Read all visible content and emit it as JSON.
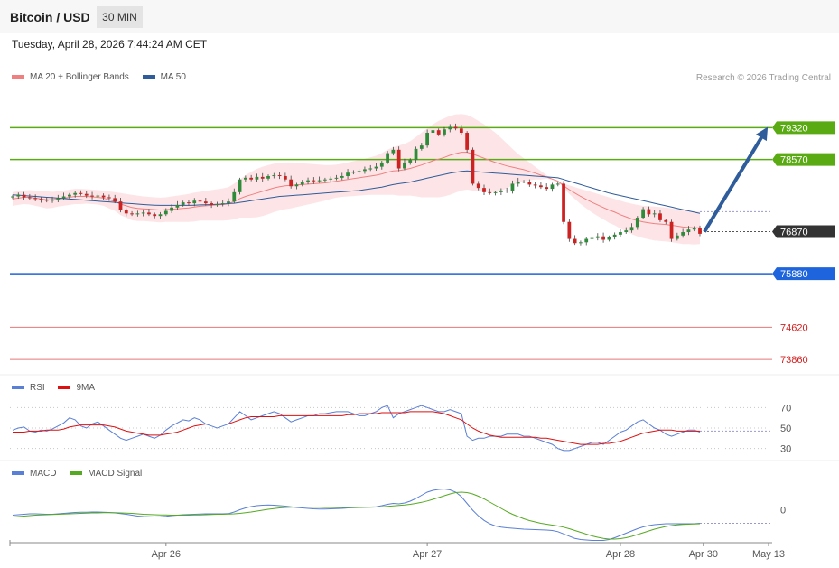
{
  "header": {
    "title": "Bitcoin / USD",
    "timeframe": "30 MIN",
    "date": "Tuesday, April 28, 2026 7:44:24 AM CET",
    "credit": "Research © 2026 Trading Central"
  },
  "colors": {
    "ma20": "#f08080",
    "ma50": "#2f5c9a",
    "bollinger": "#fde2e4",
    "candle_up": "#2e8b3a",
    "candle_down": "#cc2222",
    "resistance": "#5aaa14",
    "pivot": "#333333",
    "support1": "#1e64dc",
    "support2": "#e87878",
    "rsi": "#5a7fd6",
    "rsi_ma": "#dd1111",
    "macd": "#5a7fd6",
    "macd_signal": "#55aa22",
    "arrow": "#2f5c9a"
  },
  "chart_data": [
    {
      "type": "candlestick",
      "panel": "price",
      "legend": [
        {
          "name": "MA 20 + Bollinger Bands",
          "color": "#f08080"
        },
        {
          "name": "MA 50",
          "color": "#2f5c9a"
        }
      ],
      "x_ticks": [
        "Apr 26",
        "Apr 27",
        "Apr 28",
        "Apr 30",
        "May 13"
      ],
      "ylim": [
        73500,
        80200
      ],
      "levels": [
        {
          "value": 79320,
          "label": "79320",
          "kind": "resistance"
        },
        {
          "value": 78570,
          "label": "78570",
          "kind": "resistance"
        },
        {
          "value": 76870,
          "label": "76870",
          "kind": "pivot"
        },
        {
          "value": 75880,
          "label": "75880",
          "kind": "support1"
        },
        {
          "value": 74620,
          "label": "74620",
          "kind": "support2"
        },
        {
          "value": 73860,
          "label": "73860",
          "kind": "support2"
        }
      ],
      "close": [
        77700,
        77740,
        77680,
        77660,
        77640,
        77620,
        77600,
        77630,
        77660,
        77700,
        77740,
        77780,
        77760,
        77720,
        77700,
        77720,
        77680,
        77660,
        77580,
        77380,
        77300,
        77280,
        77300,
        77320,
        77280,
        77240,
        77280,
        77360,
        77440,
        77500,
        77560,
        77540,
        77600,
        77580,
        77540,
        77500,
        77520,
        77540,
        77580,
        77800,
        78100,
        78140,
        78100,
        78160,
        78120,
        78180,
        78200,
        78180,
        78100,
        77940,
        77980,
        78040,
        78080,
        78060,
        78080,
        78100,
        78120,
        78140,
        78180,
        78260,
        78280,
        78300,
        78340,
        78360,
        78400,
        78500,
        78720,
        78800,
        78360,
        78500,
        78560,
        78820,
        78900,
        79200,
        79260,
        79160,
        79280,
        79340,
        79300,
        79200,
        78800,
        78000,
        77900,
        77800,
        77780,
        77800,
        77840,
        77820,
        78000,
        78050,
        78050,
        77980,
        77960,
        77920,
        77880,
        77980,
        78000,
        77100,
        76700,
        76600,
        76620,
        76700,
        76720,
        76760,
        76680,
        76740,
        76800,
        76860,
        76900,
        76980,
        77200,
        77400,
        77280,
        77300,
        77140,
        77100,
        76700,
        76780,
        76860,
        76920,
        76960,
        76820
      ],
      "ma20": [
        77640,
        77660,
        77680,
        77680,
        77660,
        77640,
        77620,
        77620,
        77640,
        77660,
        77680,
        77700,
        77700,
        77700,
        77690,
        77680,
        77660,
        77620,
        77580,
        77520,
        77480,
        77440,
        77420,
        77410,
        77400,
        77390,
        77380,
        77390,
        77400,
        77410,
        77420,
        77430,
        77450,
        77470,
        77480,
        77490,
        77500,
        77510,
        77530,
        77580,
        77650,
        77700,
        77740,
        77780,
        77820,
        77860,
        77900,
        77930,
        77950,
        77960,
        77970,
        77980,
        77990,
        78000,
        78010,
        78020,
        78040,
        78060,
        78080,
        78100,
        78120,
        78140,
        78160,
        78180,
        78200,
        78230,
        78270,
        78300,
        78310,
        78330,
        78360,
        78400,
        78440,
        78490,
        78540,
        78580,
        78620,
        78670,
        78710,
        78740,
        78740,
        78700,
        78650,
        78600,
        78550,
        78500,
        78460,
        78420,
        78390,
        78360,
        78330,
        78290,
        78250,
        78200,
        78160,
        78110,
        78060,
        77950,
        77860,
        77780,
        77700,
        77630,
        77560,
        77500,
        77440,
        77380,
        77330,
        77270,
        77220,
        77170,
        77130,
        77100,
        77080,
        77060,
        77050,
        77040,
        77020,
        77000,
        76980,
        76970,
        76960,
        76960
      ],
      "bb_upper": [
        77800,
        77820,
        77840,
        77850,
        77840,
        77830,
        77820,
        77810,
        77820,
        77840,
        77860,
        77880,
        77880,
        77870,
        77860,
        77850,
        77840,
        77820,
        77800,
        77780,
        77760,
        77740,
        77720,
        77700,
        77690,
        77680,
        77670,
        77680,
        77700,
        77720,
        77740,
        77760,
        77790,
        77810,
        77830,
        77850,
        77870,
        77890,
        77920,
        78000,
        78100,
        78200,
        78280,
        78350,
        78400,
        78440,
        78470,
        78490,
        78500,
        78500,
        78490,
        78480,
        78470,
        78460,
        78450,
        78440,
        78440,
        78450,
        78470,
        78500,
        78530,
        78560,
        78590,
        78620,
        78660,
        78720,
        78800,
        78860,
        78900,
        78940,
        79000,
        79100,
        79200,
        79300,
        79400,
        79480,
        79540,
        79600,
        79630,
        79640,
        79620,
        79560,
        79480,
        79400,
        79300,
        79200,
        79080,
        78950,
        78820,
        78700,
        78600,
        78500,
        78400,
        78300,
        78200,
        78120,
        78060,
        78000,
        77960,
        77920,
        77880,
        77840,
        77800,
        77760,
        77720,
        77680,
        77640,
        77600,
        77560,
        77530,
        77500,
        77480,
        77470,
        77460,
        77450,
        77440,
        77420,
        77400,
        77380,
        77360,
        77350,
        77340
      ],
      "bb_lower": [
        77480,
        77500,
        77520,
        77510,
        77480,
        77450,
        77420,
        77430,
        77460,
        77480,
        77500,
        77520,
        77520,
        77530,
        77520,
        77510,
        77480,
        77420,
        77360,
        77260,
        77200,
        77140,
        77120,
        77120,
        77110,
        77100,
        77090,
        77100,
        77100,
        77100,
        77100,
        77100,
        77110,
        77130,
        77130,
        77130,
        77130,
        77130,
        77140,
        77160,
        77200,
        77200,
        77200,
        77210,
        77240,
        77280,
        77330,
        77370,
        77400,
        77420,
        77450,
        77480,
        77510,
        77540,
        77570,
        77600,
        77640,
        77670,
        77690,
        77700,
        77710,
        77720,
        77730,
        77740,
        77740,
        77740,
        77740,
        77740,
        77720,
        77720,
        77720,
        77700,
        77680,
        77680,
        77680,
        77680,
        77700,
        77740,
        77790,
        77840,
        77860,
        77840,
        77820,
        77800,
        77800,
        77800,
        77840,
        77890,
        77960,
        78020,
        78060,
        78080,
        78100,
        78100,
        78120,
        78100,
        78060,
        77900,
        77760,
        77640,
        77520,
        77420,
        77320,
        77240,
        77160,
        77080,
        77020,
        76940,
        76880,
        76810,
        76760,
        76720,
        76690,
        76660,
        76650,
        76640,
        76620,
        76600,
        76580,
        76580,
        76570,
        76580
      ],
      "ma50": [
        77740,
        77730,
        77720,
        77710,
        77700,
        77690,
        77680,
        77670,
        77660,
        77650,
        77640,
        77630,
        77620,
        77610,
        77600,
        77590,
        77580,
        77570,
        77560,
        77550,
        77540,
        77530,
        77520,
        77510,
        77500,
        77495,
        77490,
        77490,
        77490,
        77490,
        77490,
        77490,
        77495,
        77500,
        77505,
        77510,
        77515,
        77520,
        77530,
        77540,
        77560,
        77580,
        77600,
        77620,
        77640,
        77660,
        77680,
        77700,
        77710,
        77720,
        77730,
        77740,
        77750,
        77760,
        77770,
        77780,
        77790,
        77800,
        77810,
        77820,
        77830,
        77840,
        77860,
        77880,
        77900,
        77920,
        77950,
        77980,
        78000,
        78020,
        78040,
        78070,
        78100,
        78130,
        78160,
        78190,
        78220,
        78250,
        78270,
        78290,
        78300,
        78290,
        78280,
        78270,
        78260,
        78250,
        78240,
        78230,
        78220,
        78210,
        78200,
        78190,
        78180,
        78170,
        78160,
        78150,
        78140,
        78100,
        78060,
        78020,
        77980,
        77940,
        77900,
        77860,
        77820,
        77780,
        77750,
        77720,
        77690,
        77660,
        77630,
        77600,
        77570,
        77540,
        77510,
        77480,
        77450,
        77420,
        77390,
        77360,
        77330,
        77300
      ],
      "forecast": {
        "from": 76870,
        "to": 79320
      }
    },
    {
      "type": "line",
      "panel": "rsi",
      "legend": [
        {
          "name": "RSI",
          "color": "#5a7fd6"
        },
        {
          "name": "9MA",
          "color": "#dd1111"
        }
      ],
      "y_ticks": [
        70,
        50,
        30
      ],
      "ylim": [
        20,
        80
      ],
      "rsi": [
        48,
        50,
        51,
        47,
        46,
        48,
        47,
        49,
        52,
        55,
        60,
        58,
        52,
        50,
        54,
        56,
        52,
        48,
        44,
        40,
        38,
        40,
        42,
        44,
        42,
        40,
        43,
        48,
        52,
        55,
        58,
        57,
        60,
        58,
        54,
        52,
        50,
        52,
        54,
        60,
        66,
        62,
        58,
        60,
        62,
        64,
        66,
        64,
        60,
        56,
        58,
        60,
        62,
        62,
        64,
        64,
        65,
        66,
        66,
        66,
        64,
        62,
        62,
        64,
        66,
        70,
        72,
        60,
        64,
        66,
        68,
        70,
        72,
        70,
        68,
        66,
        66,
        68,
        66,
        64,
        42,
        38,
        40,
        40,
        42,
        42,
        42,
        44,
        44,
        44,
        42,
        42,
        40,
        38,
        36,
        34,
        30,
        28,
        28,
        30,
        32,
        34,
        36,
        36,
        34,
        38,
        42,
        46,
        48,
        52,
        56,
        58,
        54,
        50,
        48,
        44,
        42,
        44,
        46,
        48,
        48,
        46
      ],
      "rsi_ma": [
        46,
        46,
        46,
        47,
        47,
        47,
        48,
        48,
        48,
        49,
        51,
        52,
        53,
        53,
        53,
        53,
        53,
        52,
        51,
        49,
        47,
        46,
        45,
        44,
        43,
        43,
        43,
        44,
        45,
        46,
        48,
        50,
        52,
        53,
        54,
        54,
        54,
        54,
        54,
        56,
        58,
        60,
        61,
        61,
        61,
        61,
        61,
        62,
        62,
        62,
        62,
        62,
        62,
        62,
        62,
        62,
        62,
        62,
        62,
        63,
        63,
        64,
        64,
        64,
        64,
        65,
        65,
        65,
        65,
        65,
        66,
        66,
        66,
        66,
        66,
        65,
        64,
        62,
        60,
        58,
        54,
        50,
        47,
        45,
        43,
        42,
        41,
        41,
        41,
        41,
        41,
        41,
        41,
        40,
        40,
        39,
        38,
        37,
        36,
        35,
        34,
        34,
        34,
        34,
        35,
        35,
        36,
        37,
        39,
        41,
        43,
        45,
        46,
        47,
        48,
        48,
        48,
        47,
        47,
        47,
        47,
        47
      ]
    },
    {
      "type": "line",
      "panel": "macd",
      "legend": [
        {
          "name": "MACD",
          "color": "#5a7fd6"
        },
        {
          "name": "MACD Signal",
          "color": "#55aa22"
        }
      ],
      "y_ticks": [
        0
      ],
      "ylim": [
        -110,
        150
      ],
      "macd": [
        8,
        10,
        12,
        14,
        14,
        13,
        12,
        12,
        14,
        16,
        18,
        20,
        21,
        21,
        22,
        22,
        21,
        20,
        18,
        15,
        12,
        8,
        4,
        2,
        1,
        0,
        1,
        3,
        6,
        8,
        10,
        11,
        12,
        13,
        14,
        14,
        14,
        14,
        15,
        22,
        32,
        40,
        46,
        50,
        52,
        53,
        52,
        50,
        48,
        45,
        42,
        40,
        38,
        36,
        35,
        35,
        36,
        37,
        38,
        40,
        41,
        42,
        43,
        44,
        45,
        50,
        56,
        60,
        58,
        62,
        70,
        82,
        96,
        110,
        118,
        122,
        124,
        120,
        110,
        90,
        60,
        30,
        5,
        -15,
        -30,
        -40,
        -45,
        -48,
        -50,
        -52,
        -54,
        -55,
        -56,
        -57,
        -58,
        -60,
        -65,
        -75,
        -85,
        -95,
        -100,
        -102,
        -104,
        -104,
        -104,
        -100,
        -92,
        -82,
        -72,
        -62,
        -52,
        -44,
        -38,
        -34,
        -32,
        -30,
        -30,
        -30,
        -30,
        -30,
        -30,
        -28
      ],
      "macd_signal": [
        0,
        2,
        4,
        6,
        8,
        9,
        10,
        11,
        12,
        13,
        14,
        15,
        16,
        17,
        18,
        18,
        19,
        19,
        19,
        18,
        17,
        16,
        14,
        12,
        11,
        10,
        9,
        9,
        8,
        8,
        8,
        8,
        9,
        9,
        10,
        11,
        12,
        12,
        13,
        14,
        16,
        19,
        22,
        26,
        30,
        34,
        37,
        40,
        42,
        43,
        44,
        44,
        44,
        43,
        43,
        42,
        42,
        42,
        42,
        42,
        42,
        42,
        43,
        43,
        44,
        45,
        47,
        49,
        51,
        53,
        56,
        60,
        65,
        71,
        78,
        86,
        94,
        102,
        108,
        110,
        108,
        102,
        92,
        80,
        66,
        52,
        38,
        24,
        12,
        2,
        -8,
        -16,
        -22,
        -28,
        -32,
        -36,
        -40,
        -45,
        -52,
        -60,
        -68,
        -76,
        -84,
        -90,
        -95,
        -98,
        -98,
        -96,
        -92,
        -86,
        -78,
        -70,
        -62,
        -54,
        -48,
        -42,
        -38,
        -35,
        -33,
        -32,
        -31,
        -30
      ]
    }
  ]
}
